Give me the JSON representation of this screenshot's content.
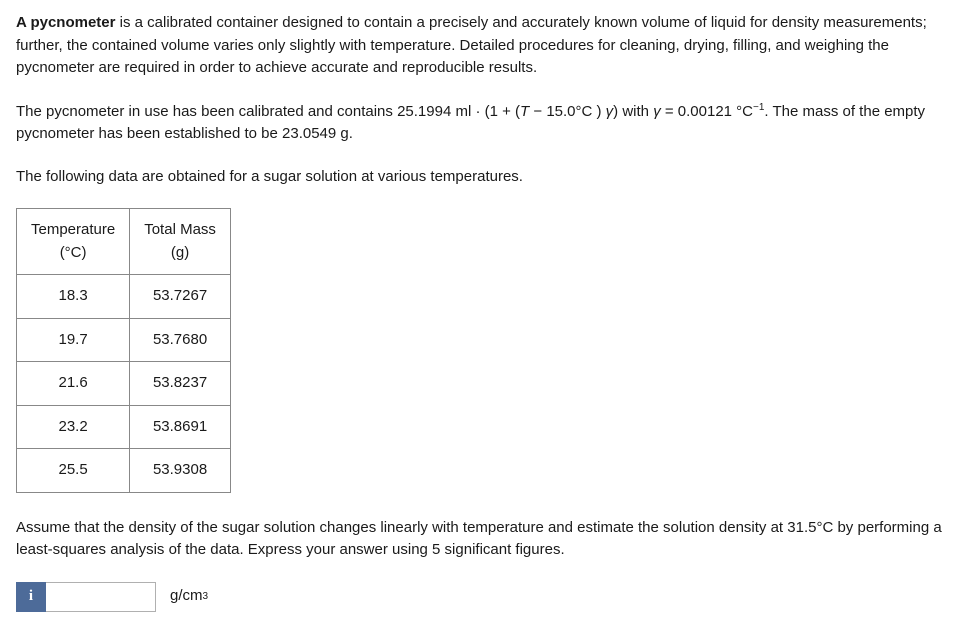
{
  "paragraphs": {
    "p1_lead_bold": "A pycnometer",
    "p1_rest": " is a calibrated container designed to contain a precisely and accurately known volume of liquid for density measurements; further, the contained volume varies only slightly with temperature. Detailed procedures for cleaning, drying, filling, and weighing the pycnometer are required in order to achieve accurate and reproducible results.",
    "p2_a": "The pycnometer in use has been calibrated and contains 25.1994 ml · (1 + (",
    "p2_T": "T",
    "p2_b": " − 15.0°C ) ",
    "p2_gamma1": "γ",
    "p2_c": ") with ",
    "p2_gamma2": "γ",
    "p2_d": " = 0.00121 °C",
    "p2_exp": "−1",
    "p2_e": ". The mass of the empty pycnometer has been established to be 23.0549 g.",
    "p3": "The following data are obtained for a sugar solution at various temperatures.",
    "p4": "Assume that the density of the sugar solution changes linearly with temperature and estimate the solution density at 31.5°C by performing a least-squares analysis of the data. Express your answer using 5 significant figures."
  },
  "table": {
    "headers": {
      "col1_line1": "Temperature",
      "col1_line2": "(°C)",
      "col2_line1": "Total Mass",
      "col2_line2": "(g)"
    },
    "rows": [
      {
        "temp": "18.3",
        "mass": "53.7267"
      },
      {
        "temp": "19.7",
        "mass": "53.7680"
      },
      {
        "temp": "21.6",
        "mass": "53.8237"
      },
      {
        "temp": "23.2",
        "mass": "53.8691"
      },
      {
        "temp": "25.5",
        "mass": "53.9308"
      }
    ]
  },
  "answer": {
    "hint_label": "i",
    "input_value": "",
    "unit_base": "g/cm",
    "unit_exp": "3"
  },
  "colors": {
    "text": "#1a1a1a",
    "table_border": "#888888",
    "hint_bg": "#4d6b99",
    "hint_fg": "#ffffff",
    "input_border": "#b0b0b0",
    "background": "#ffffff"
  }
}
